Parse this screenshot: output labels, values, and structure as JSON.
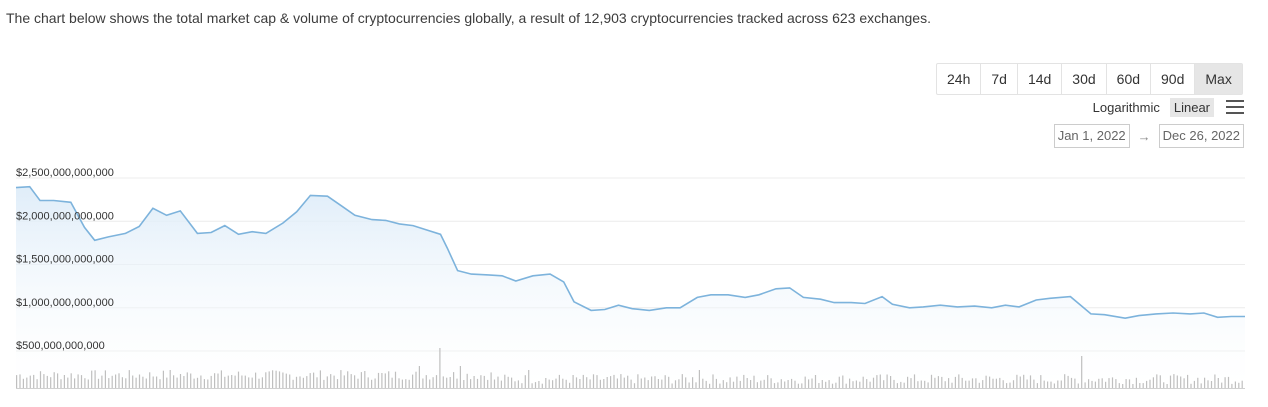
{
  "description": "The chart below shows the total market cap & volume of cryptocurrencies globally, a result of 12,903 cryptocurrencies tracked across 623 exchanges.",
  "ranges": [
    "24h",
    "7d",
    "14d",
    "30d",
    "60d",
    "90d",
    "Max"
  ],
  "active_range": "Max",
  "scale": {
    "log_label": "Logarithmic",
    "linear_label": "Linear",
    "active": "Linear"
  },
  "date_range": {
    "from": "Jan 1, 2022",
    "arrow": "→",
    "to": "Dec 26, 2022"
  },
  "menu_icon": "hamburger-menu-icon",
  "colors": {
    "line": "#7db3dc",
    "fill_top": "#dcebf8",
    "volume": "#bfbfbf",
    "grid": "#ececec"
  },
  "chart_data": {
    "type": "area",
    "title": "",
    "xlabel": "",
    "ylabel": "",
    "x_range": [
      "2022-01-01",
      "2022-12-26"
    ],
    "ylim": [
      500000000000,
      2500000000000
    ],
    "yticks": [
      "$2,500,000,000,000",
      "$2,000,000,000,000",
      "$1,500,000,000,000",
      "$1,000,000,000,000",
      "$500,000,000,000"
    ],
    "ytick_values": [
      2500000000000,
      2000000000000,
      1500000000000,
      1000000000000,
      500000000000
    ],
    "grid": true,
    "legend": "none",
    "series": [
      {
        "values": [
          {
            "x": "2022-01-01",
            "y": 2320000000000
          },
          {
            "x": "2022-01-05",
            "y": 2330000000000
          },
          {
            "x": "2022-01-08",
            "y": 2170000000000
          },
          {
            "x": "2022-01-12",
            "y": 2170000000000
          },
          {
            "x": "2022-01-17",
            "y": 2150000000000
          },
          {
            "x": "2022-01-21",
            "y": 1860000000000
          },
          {
            "x": "2022-01-24",
            "y": 1710000000000
          },
          {
            "x": "2022-01-28",
            "y": 1750000000000
          },
          {
            "x": "2022-02-02",
            "y": 1790000000000
          },
          {
            "x": "2022-02-06",
            "y": 1870000000000
          },
          {
            "x": "2022-02-10",
            "y": 2080000000000
          },
          {
            "x": "2022-02-14",
            "y": 2000000000000
          },
          {
            "x": "2022-02-18",
            "y": 2050000000000
          },
          {
            "x": "2022-02-23",
            "y": 1790000000000
          },
          {
            "x": "2022-02-27",
            "y": 1800000000000
          },
          {
            "x": "2022-03-03",
            "y": 1880000000000
          },
          {
            "x": "2022-03-07",
            "y": 1780000000000
          },
          {
            "x": "2022-03-11",
            "y": 1810000000000
          },
          {
            "x": "2022-03-15",
            "y": 1790000000000
          },
          {
            "x": "2022-03-20",
            "y": 1910000000000
          },
          {
            "x": "2022-03-24",
            "y": 2040000000000
          },
          {
            "x": "2022-03-28",
            "y": 2230000000000
          },
          {
            "x": "2022-04-02",
            "y": 2220000000000
          },
          {
            "x": "2022-04-06",
            "y": 2110000000000
          },
          {
            "x": "2022-04-10",
            "y": 2000000000000
          },
          {
            "x": "2022-04-15",
            "y": 1950000000000
          },
          {
            "x": "2022-04-19",
            "y": 1940000000000
          },
          {
            "x": "2022-04-23",
            "y": 1900000000000
          },
          {
            "x": "2022-04-27",
            "y": 1880000000000
          },
          {
            "x": "2022-05-01",
            "y": 1830000000000
          },
          {
            "x": "2022-05-05",
            "y": 1780000000000
          },
          {
            "x": "2022-05-07",
            "y": 1620000000000
          },
          {
            "x": "2022-05-10",
            "y": 1360000000000
          },
          {
            "x": "2022-05-14",
            "y": 1320000000000
          },
          {
            "x": "2022-05-19",
            "y": 1310000000000
          },
          {
            "x": "2022-05-23",
            "y": 1300000000000
          },
          {
            "x": "2022-05-27",
            "y": 1240000000000
          },
          {
            "x": "2022-06-01",
            "y": 1300000000000
          },
          {
            "x": "2022-06-06",
            "y": 1320000000000
          },
          {
            "x": "2022-06-10",
            "y": 1230000000000
          },
          {
            "x": "2022-06-13",
            "y": 1000000000000
          },
          {
            "x": "2022-06-18",
            "y": 900000000000
          },
          {
            "x": "2022-06-22",
            "y": 910000000000
          },
          {
            "x": "2022-06-26",
            "y": 960000000000
          },
          {
            "x": "2022-06-30",
            "y": 920000000000
          },
          {
            "x": "2022-07-05",
            "y": 900000000000
          },
          {
            "x": "2022-07-10",
            "y": 930000000000
          },
          {
            "x": "2022-07-14",
            "y": 930000000000
          },
          {
            "x": "2022-07-19",
            "y": 1050000000000
          },
          {
            "x": "2022-07-23",
            "y": 1080000000000
          },
          {
            "x": "2022-07-28",
            "y": 1080000000000
          },
          {
            "x": "2022-08-02",
            "y": 1050000000000
          },
          {
            "x": "2022-08-06",
            "y": 1080000000000
          },
          {
            "x": "2022-08-11",
            "y": 1150000000000
          },
          {
            "x": "2022-08-15",
            "y": 1160000000000
          },
          {
            "x": "2022-08-19",
            "y": 1050000000000
          },
          {
            "x": "2022-08-24",
            "y": 1030000000000
          },
          {
            "x": "2022-08-28",
            "y": 990000000000
          },
          {
            "x": "2022-09-02",
            "y": 990000000000
          },
          {
            "x": "2022-09-06",
            "y": 980000000000
          },
          {
            "x": "2022-09-11",
            "y": 1060000000000
          },
          {
            "x": "2022-09-14",
            "y": 970000000000
          },
          {
            "x": "2022-09-19",
            "y": 930000000000
          },
          {
            "x": "2022-09-23",
            "y": 940000000000
          },
          {
            "x": "2022-09-28",
            "y": 960000000000
          },
          {
            "x": "2022-10-03",
            "y": 940000000000
          },
          {
            "x": "2022-10-08",
            "y": 950000000000
          },
          {
            "x": "2022-10-13",
            "y": 930000000000
          },
          {
            "x": "2022-10-17",
            "y": 960000000000
          },
          {
            "x": "2022-10-21",
            "y": 940000000000
          },
          {
            "x": "2022-10-26",
            "y": 1020000000000
          },
          {
            "x": "2022-10-30",
            "y": 1040000000000
          },
          {
            "x": "2022-11-05",
            "y": 1060000000000
          },
          {
            "x": "2022-11-08",
            "y": 960000000000
          },
          {
            "x": "2022-11-11",
            "y": 860000000000
          },
          {
            "x": "2022-11-15",
            "y": 850000000000
          },
          {
            "x": "2022-11-21",
            "y": 810000000000
          },
          {
            "x": "2022-11-25",
            "y": 840000000000
          },
          {
            "x": "2022-11-30",
            "y": 860000000000
          },
          {
            "x": "2022-12-05",
            "y": 870000000000
          },
          {
            "x": "2022-12-10",
            "y": 860000000000
          },
          {
            "x": "2022-12-14",
            "y": 870000000000
          },
          {
            "x": "2022-12-18",
            "y": 820000000000
          },
          {
            "x": "2022-12-22",
            "y": 830000000000
          },
          {
            "x": "2022-12-26",
            "y": 830000000000
          }
        ]
      }
    ]
  }
}
